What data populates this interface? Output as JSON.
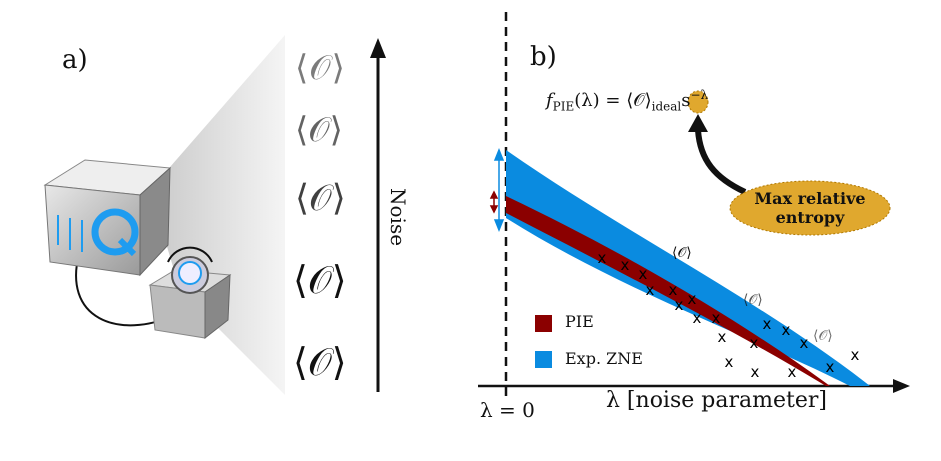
{
  "panel_a": {
    "label": "a)",
    "operators": [
      "⟨𝒪⟩",
      "⟨𝒪⟩",
      "⟨𝒪⟩",
      "⟨𝒪⟩",
      "⟨𝒪⟩"
    ],
    "noise_axis_label": "Noise",
    "cube_logo": "Q"
  },
  "panel_b": {
    "label": "b)",
    "formula_main": "f",
    "formula_sub": "PIE",
    "formula_rest": "(λ) = ⟨𝒪⟩",
    "formula_ideal": "ideal",
    "formula_base": "s",
    "formula_exp": "−λ",
    "callout": "Max relative entropy",
    "x_axis_label": "λ [noise parameter]",
    "zero_label": "λ = 0",
    "point_labels": [
      "⟨𝒪⟩",
      "⟨𝒪⟩",
      "⟨𝒪⟩"
    ],
    "legend": [
      {
        "name": "PIE",
        "color": "#8b0000"
      },
      {
        "name": "Exp. ZNE",
        "color": "#0a8be0"
      }
    ],
    "marker": "x",
    "colors": {
      "callout": "#e0a82e",
      "arrow": "#111111"
    }
  }
}
